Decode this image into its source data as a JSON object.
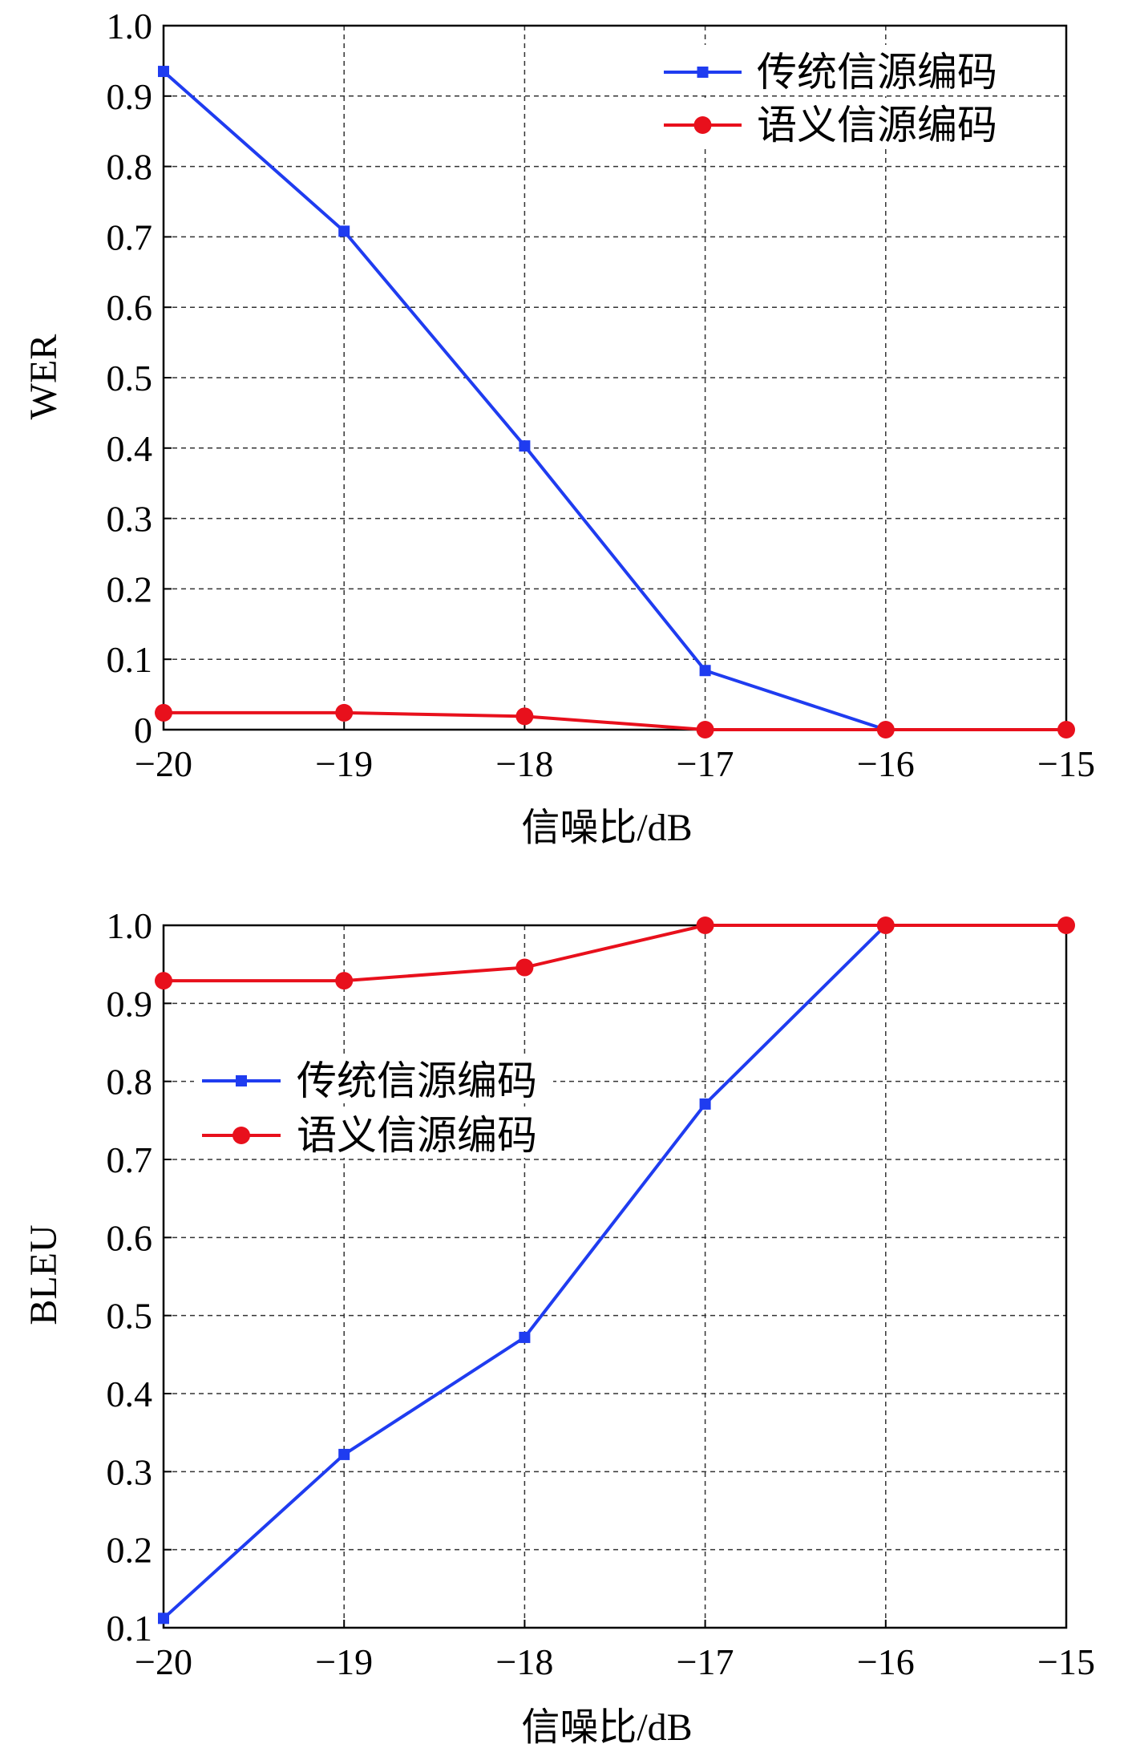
{
  "chart_data": [
    {
      "type": "line",
      "x": [
        -20,
        -19,
        -18,
        -17,
        -16,
        -15
      ],
      "xlabel": "信噪比/dB",
      "ylabel": "WER",
      "xlim": [
        -20,
        -15
      ],
      "ylim": [
        0,
        1.0
      ],
      "x_ticks": [
        "−20",
        "−19",
        "−18",
        "−17",
        "−16",
        "−15"
      ],
      "y_ticks": [
        "0",
        "0.1",
        "0.2",
        "0.3",
        "0.4",
        "0.5",
        "0.6",
        "0.7",
        "0.8",
        "0.9",
        "1.0"
      ],
      "grid": true,
      "legend_position": "top-right",
      "series": [
        {
          "name": "传统信源编码",
          "color": "#1f3cf0",
          "marker": "square",
          "x": [
            -20,
            -19,
            -18,
            -17,
            -16
          ],
          "values": [
            0.935,
            0.708,
            0.403,
            0.084,
            0.0
          ]
        },
        {
          "name": "语义信源编码",
          "color": "#e8101c",
          "marker": "circle",
          "x": [
            -20,
            -19,
            -18,
            -17,
            -16,
            -15
          ],
          "values": [
            0.024,
            0.024,
            0.019,
            0.0,
            0.0,
            0.0
          ]
        }
      ]
    },
    {
      "type": "line",
      "x": [
        -20,
        -19,
        -18,
        -17,
        -16,
        -15
      ],
      "xlabel": "信噪比/dB",
      "ylabel": "BLEU",
      "xlim": [
        -20,
        -15
      ],
      "ylim": [
        0.1,
        1.0
      ],
      "x_ticks": [
        "−20",
        "−19",
        "−18",
        "−17",
        "−16",
        "−15"
      ],
      "y_ticks": [
        "0.1",
        "0.2",
        "0.3",
        "0.4",
        "0.5",
        "0.6",
        "0.7",
        "0.8",
        "0.9",
        "1.0"
      ],
      "grid": true,
      "legend_position": "upper-left",
      "series": [
        {
          "name": "传统信源编码",
          "color": "#1f3cf0",
          "marker": "square",
          "x": [
            -20,
            -19,
            -18,
            -17,
            -16
          ],
          "values": [
            0.112,
            0.322,
            0.472,
            0.771,
            1.0
          ]
        },
        {
          "name": "语义信源编码",
          "color": "#e8101c",
          "marker": "circle",
          "x": [
            -20,
            -19,
            -18,
            -17,
            -16,
            -15
          ],
          "values": [
            0.929,
            0.929,
            0.946,
            1.0,
            1.0,
            1.0
          ]
        }
      ]
    }
  ]
}
